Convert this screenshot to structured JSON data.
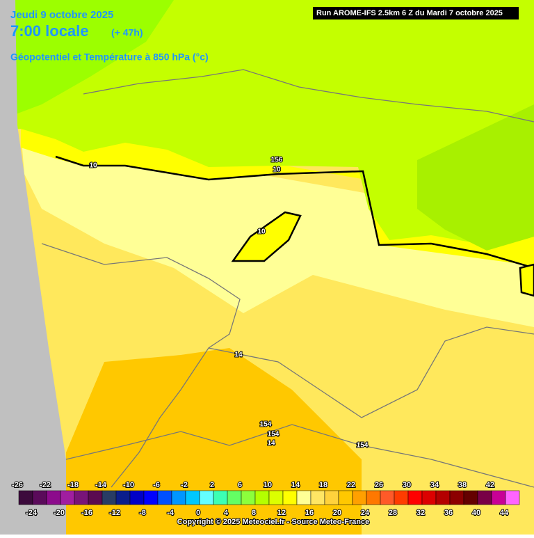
{
  "header": {
    "date": "Jeudi 9 octobre 2025",
    "time": "7:00 locale",
    "lead": "(+ 47h)",
    "field": "Géopotentiel et Température à 850 hPa (°c)",
    "run": "Run AROME-IFS 2.5km 6 Z du Mardi 7 octobre 2025"
  },
  "map": {
    "contour_labels": [
      "10",
      "156",
      "10",
      "10",
      "14",
      "154",
      "154",
      "14",
      "154"
    ]
  },
  "colorbar": {
    "values": [
      -26,
      -24,
      -22,
      -20,
      -18,
      -16,
      -14,
      -12,
      -10,
      -8,
      -6,
      -4,
      -2,
      0,
      2,
      4,
      6,
      8,
      10,
      12,
      14,
      16,
      18,
      20,
      22,
      24,
      26,
      28,
      30,
      32,
      34,
      36,
      38,
      40,
      42,
      44
    ],
    "colors": [
      "#3c0a3c",
      "#5a0a5a",
      "#8c0a8c",
      "#a01ea0",
      "#781478",
      "#5a0a50",
      "#283c64",
      "#0a1e8c",
      "#0000c8",
      "#0000ff",
      "#0050ff",
      "#0096ff",
      "#00c8ff",
      "#64ffff",
      "#3cffb4",
      "#64ff64",
      "#8cff3c",
      "#b4ff00",
      "#dcff00",
      "#ffff00",
      "#ffff96",
      "#ffe664",
      "#ffd23c",
      "#ffc800",
      "#ffa000",
      "#ff7800",
      "#ff5a28",
      "#ff3c00",
      "#ff0000",
      "#dc0000",
      "#b40000",
      "#8c0000",
      "#640000",
      "#780046",
      "#c80096",
      "#ff64ff"
    ]
  },
  "footer": {
    "copyright": "Copyright © 2025 Meteociel.fr - Source Meteo-France"
  }
}
